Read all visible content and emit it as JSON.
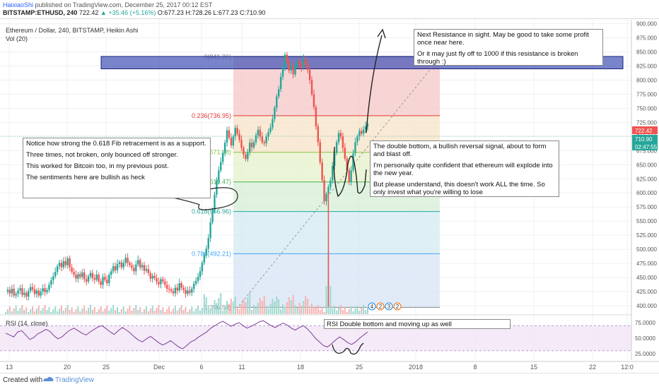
{
  "header": {
    "user": "HaixiaoShi",
    "published": " published on TradingView.com, December 25, 2017 00:12 EST",
    "ticker": "BITSTAMP:ETHUSD, 240",
    "last": "722.42",
    "change": "▲ +35.46 (+5.16%)",
    "ohlc": "O:677.23  H:728.26  L:677.23  C:710.90"
  },
  "chart_title": "Ethereum / Dollar, 240, BITSTAMP, Heikin Ashi",
  "vol_label": "Vol (20)",
  "rsi_label": "RSI (14, close)",
  "notes": {
    "left": [
      "Notice how strong the 0.618 Fib retracement is as a support.",
      "Three times, not broken, only bounced off stronger.",
      "This worked for Bitcoin too, in my previous post.",
      "The sentiments here are bullish as heck"
    ],
    "right": [
      "The double bottom, a bullish reversal signal, about to form and blast off.",
      "I'm personally quite confident that ethereum will explode into the new year.",
      "But please understand, this doesn't work ALL the time. So only invest what you're willing to lose"
    ],
    "top": [
      "Next Resistance in sight. May be good to take some profit once near here.",
      "Or it may just fly off to 1000 if this resistance is broken through  :)"
    ],
    "rsi": "RSI Double bottom and moving up as well"
  },
  "price_tags": [
    "722.42",
    "710.90",
    "02:47:55"
  ],
  "event_markers": [
    "4",
    "2",
    "3",
    "2"
  ],
  "footer": {
    "created": "Created with",
    "brand": "TradingView"
  },
  "colors": {
    "up": "#26a69a",
    "down": "#ef5350",
    "resistance": "#3f51b5",
    "rsi_line": "#7b3f99"
  },
  "chart_data": {
    "type": "candlestick",
    "price_scale": {
      "min": 375,
      "max": 910
    },
    "price_ticks": [
      400,
      425,
      450,
      475,
      500,
      525,
      550,
      575,
      600,
      625,
      650,
      675,
      700,
      725,
      750,
      775,
      800,
      825,
      850,
      875,
      900
    ],
    "x_ticks": [
      "13",
      "20",
      "25",
      "Dec",
      "6",
      "11",
      "18",
      "25",
      "2018",
      "8",
      "15",
      "22",
      "12:0"
    ],
    "fib_levels": [
      {
        "ratio": "0",
        "price": 841.26,
        "label": "0(841.26)"
      },
      {
        "ratio": "0.236",
        "price": 736.95,
        "label": "0.236(736.95)"
      },
      {
        "ratio": "0.382",
        "price": 671.98,
        "label": "0.382(671.98)"
      },
      {
        "ratio": "0.5",
        "price": 619.47,
        "label": "0.5(619.47)"
      },
      {
        "ratio": "0.618",
        "price": 566.96,
        "label": "0.618(566.96)"
      },
      {
        "ratio": "0.786",
        "price": 492.21,
        "label": "0.786(492.21)"
      },
      {
        "ratio": "1",
        "price": 396.98,
        "label": "1(396.98)"
      }
    ],
    "resistance_zone": [
      820,
      842
    ],
    "rsi_ticks": [
      25,
      50,
      75
    ],
    "rsi_tick_labels": [
      "25.0000",
      "50.0000",
      "75.0000"
    ],
    "rsi_band": [
      30,
      70
    ],
    "price_series": [
      425,
      428,
      422,
      430,
      418,
      421,
      427,
      431,
      419,
      423,
      416,
      426,
      433,
      429,
      421,
      427,
      418,
      425,
      431,
      424,
      428,
      437,
      445,
      452,
      460,
      470,
      476,
      468,
      479,
      472,
      484,
      468,
      460,
      455,
      448,
      456,
      451,
      459,
      447,
      443,
      452,
      458,
      449,
      446,
      455,
      443,
      437,
      451,
      446,
      440,
      455,
      461,
      470,
      463,
      474,
      477,
      468,
      476,
      485,
      476,
      472,
      467,
      461,
      473,
      481,
      468,
      472,
      462,
      465,
      458,
      448,
      453,
      449,
      442,
      438,
      447,
      443,
      437,
      430,
      429,
      426,
      422,
      432,
      427,
      440,
      432,
      428,
      421,
      427,
      423,
      430,
      439,
      444,
      451,
      461,
      476,
      489,
      501,
      520,
      548,
      570,
      597,
      622,
      640,
      655,
      671,
      689,
      711,
      698,
      684,
      700,
      715,
      705,
      694,
      680,
      668,
      660,
      672,
      689,
      681,
      690,
      702,
      712,
      700,
      690,
      688,
      700,
      708,
      716,
      731,
      751,
      771,
      784,
      806,
      823,
      845,
      832,
      817,
      825,
      810,
      826,
      834,
      827,
      822,
      838,
      829,
      818,
      800,
      775,
      752,
      718,
      690,
      654,
      623,
      585,
      598,
      610,
      622,
      648,
      671,
      690,
      706,
      700,
      680,
      661,
      640,
      620,
      640,
      670,
      690,
      700,
      710,
      705,
      712,
      718,
      722
    ],
    "rsi_series": [
      58,
      55,
      52,
      60,
      62,
      55,
      48,
      51,
      57,
      60,
      64,
      61,
      54,
      49,
      52,
      58,
      63,
      66,
      62,
      58,
      55,
      60,
      64,
      68,
      70,
      65,
      60,
      56,
      62,
      67,
      63,
      58,
      52,
      47,
      44,
      49,
      53,
      48,
      43,
      39,
      42,
      46,
      41,
      36,
      33,
      38,
      44,
      47,
      52,
      56,
      60,
      66,
      70,
      74,
      77,
      73,
      69,
      72,
      75,
      70,
      66,
      69,
      72,
      76,
      78,
      74,
      70,
      67,
      71,
      74,
      71,
      66,
      63,
      67,
      70,
      65,
      58,
      50,
      44,
      38,
      36,
      41,
      47,
      52,
      48,
      43,
      40,
      44,
      50,
      55,
      60
    ]
  }
}
